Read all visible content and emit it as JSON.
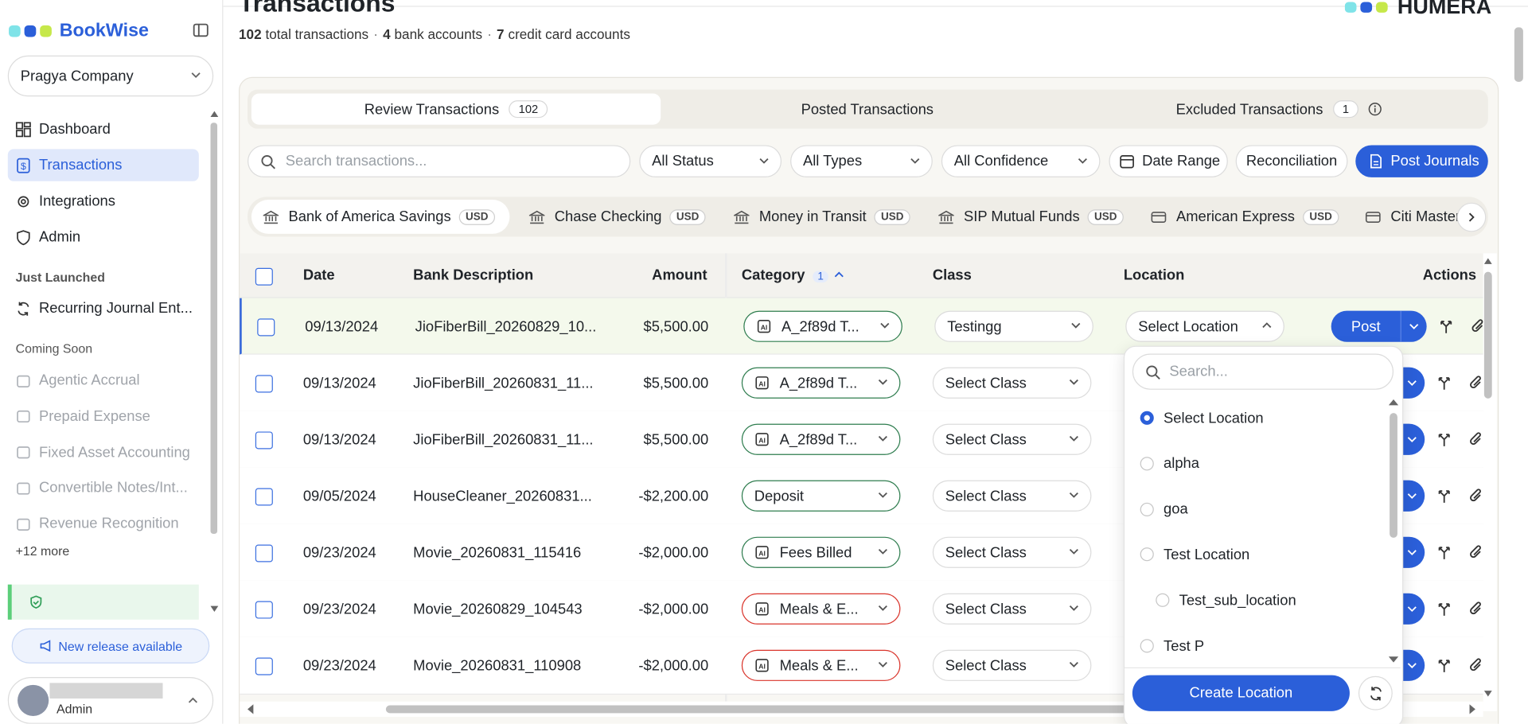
{
  "sidebar": {
    "brand": "BookWise",
    "company": "Pragya Company",
    "nav": [
      "Dashboard",
      "Transactions",
      "Integrations",
      "Admin"
    ],
    "active_nav": 1,
    "launched_heading": "Just Launched",
    "launched": [
      "Recurring Journal Ent..."
    ],
    "soon_heading": "Coming Soon",
    "soon": [
      "Agentic Accrual",
      "Prepaid Expense",
      "Fixed Asset Accounting",
      "Convertible Notes/Int...",
      "Revenue Recognition"
    ],
    "more": "+12 more",
    "release": "New release available",
    "user_role": "Admin"
  },
  "header": {
    "title": "Transactions",
    "separator": "·",
    "stats": [
      {
        "count": "102",
        "label": "total transactions"
      },
      {
        "count": "4",
        "label": "bank accounts"
      },
      {
        "count": "7",
        "label": "credit card accounts"
      }
    ],
    "logo": "HUMERA"
  },
  "tabs": [
    {
      "label": "Review Transactions",
      "count": "102"
    },
    {
      "label": "Posted Transactions"
    },
    {
      "label": "Excluded Transactions",
      "count": "1"
    }
  ],
  "filters": {
    "search": "Search transactions...",
    "dropdowns": [
      "All Status",
      "All Types",
      "All Confidence"
    ],
    "date_range": "Date Range",
    "reconciliation": "Reconciliation",
    "post_journals": "Post Journals"
  },
  "accounts": [
    {
      "name": "Bank of America Savings",
      "currency": "USD",
      "kind": "bank"
    },
    {
      "name": "Chase Checking",
      "currency": "USD",
      "kind": "bank"
    },
    {
      "name": "Money in Transit",
      "currency": "USD",
      "kind": "bank"
    },
    {
      "name": "SIP Mutual Funds",
      "currency": "USD",
      "kind": "bank"
    },
    {
      "name": "American Express",
      "currency": "USD",
      "kind": "card"
    },
    {
      "name": "Citi Master",
      "kind": "card"
    }
  ],
  "table": {
    "columns": [
      "Date",
      "Bank Description",
      "Amount",
      "Category",
      "Class",
      "Location",
      "Actions"
    ],
    "category_badge": "1",
    "post": "Post",
    "rows": [
      {
        "date": "09/13/2024",
        "description": "JioFiberBill_20260829_10...",
        "amount": "$5,500.00",
        "category": "A_2f89d T...",
        "category_color": "#2f7d4f",
        "ai": true,
        "class": "Testingg",
        "location": "Select Location"
      },
      {
        "date": "09/13/2024",
        "description": "JioFiberBill_20260831_11...",
        "amount": "$5,500.00",
        "category": "A_2f89d T...",
        "category_color": "#2f7d4f",
        "ai": true,
        "class": "Select Class"
      },
      {
        "date": "09/13/2024",
        "description": "JioFiberBill_20260831_11...",
        "amount": "$5,500.00",
        "category": "A_2f89d T...",
        "category_color": "#2f7d4f",
        "ai": true,
        "class": "Select Class"
      },
      {
        "date": "09/05/2024",
        "description": "HouseCleaner_20260831...",
        "amount": "-$2,200.00",
        "category": "Deposit",
        "category_color": "#2f7d4f",
        "ai": false,
        "class": "Select Class"
      },
      {
        "date": "09/23/2024",
        "description": "Movie_20260831_115416",
        "amount": "-$2,000.00",
        "category": "Fees Billed",
        "category_color": "#2f7d4f",
        "ai": true,
        "class": "Select Class"
      },
      {
        "date": "09/23/2024",
        "description": "Movie_20260829_104543",
        "amount": "-$2,000.00",
        "category": "Meals & E...",
        "category_color": "#d9342b",
        "ai": true,
        "class": "Select Class"
      },
      {
        "date": "09/23/2024",
        "description": "Movie_20260831_110908",
        "amount": "-$2,000.00",
        "category": "Meals & E...",
        "category_color": "#d9342b",
        "ai": true,
        "class": "Select Class"
      }
    ]
  },
  "location_menu": {
    "search": "Search...",
    "options": [
      {
        "label": "Select Location",
        "level": 0
      },
      {
        "label": "alpha",
        "level": 0
      },
      {
        "label": "goa",
        "level": 0
      },
      {
        "label": "Test Location",
        "level": 0
      },
      {
        "label": "Test_sub_location",
        "level": 1
      },
      {
        "label": "Test P",
        "level": 0
      }
    ],
    "selected": 0,
    "create": "Create Location"
  }
}
